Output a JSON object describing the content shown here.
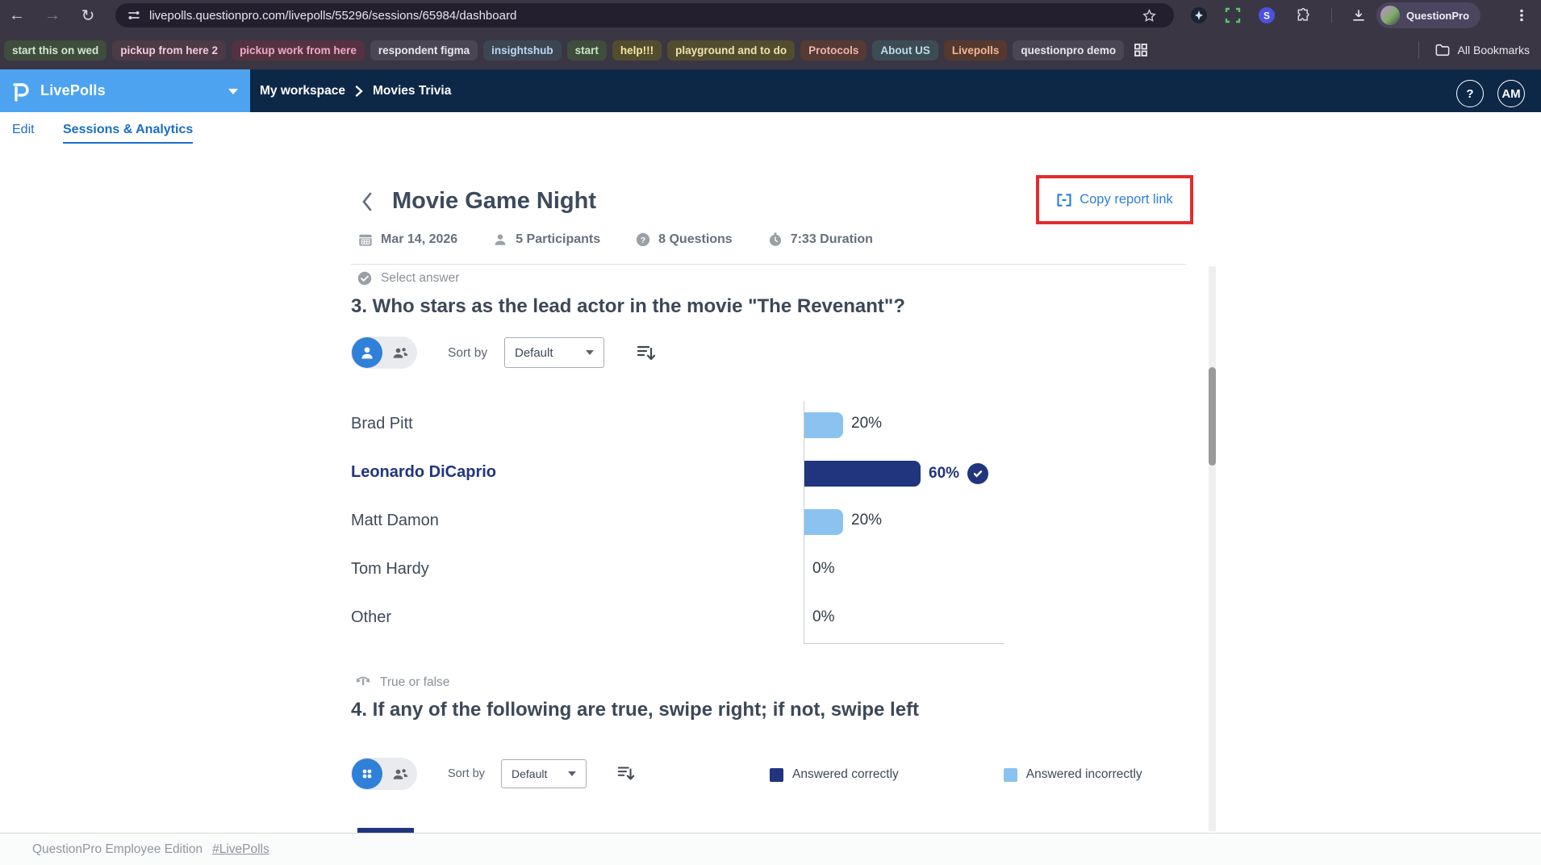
{
  "browser": {
    "toolbar": {
      "url": "livepolls.questionpro.com/livepolls/55296/sessions/65984/dashboard",
      "profile_label": "QuestionPro"
    },
    "bookmarks": [
      {
        "label": "start this on wed",
        "fg": "#d4e6cf",
        "bg": "#3f4d3c"
      },
      {
        "label": "pickup from here 2",
        "fg": "#f2cade",
        "bg": "#4c3a46"
      },
      {
        "label": "pickup work from here",
        "fg": "#f0a9c5",
        "bg": "#553241"
      },
      {
        "label": "respondent figma",
        "fg": "#e9e7ee",
        "bg": "#4a4653"
      },
      {
        "label": "insightshub",
        "fg": "#bcd6f2",
        "bg": "#3c4653"
      },
      {
        "label": "start",
        "fg": "#cbe5c3",
        "bg": "#3f4d3c"
      },
      {
        "label": "help!!!",
        "fg": "#f5e6a0",
        "bg": "#534d2f"
      },
      {
        "label": "playground and to do",
        "fg": "#f0e3a8",
        "bg": "#524c31"
      },
      {
        "label": "Protocols",
        "fg": "#f2b4ab",
        "bg": "#553a35"
      },
      {
        "label": "About US",
        "fg": "#bfdcea",
        "bg": "#3c4c54"
      },
      {
        "label": "Livepolls",
        "fg": "#f3b597",
        "bg": "#55392f"
      },
      {
        "label": "questionpro demo",
        "fg": "#e9e7ee",
        "bg": "#4a4653"
      }
    ],
    "all_bookmarks_label": "All Bookmarks"
  },
  "header": {
    "product": "LivePolls",
    "breadcrumb": {
      "workspace": "My workspace",
      "current": "Movies Trivia"
    },
    "help_label": "?",
    "avatar_initials": "AM"
  },
  "tabs": {
    "edit": "Edit",
    "sessions": "Sessions & Analytics"
  },
  "report": {
    "title": "Movie Game Night",
    "copy_button": "Copy report link",
    "meta": [
      {
        "icon": "calendar-icon",
        "label": "Mar 14, 2026"
      },
      {
        "icon": "person-icon",
        "label": "5 Participants"
      },
      {
        "icon": "question-icon",
        "label": "8 Questions"
      },
      {
        "icon": "timer-icon",
        "label": "7:33 Duration"
      }
    ]
  },
  "q3": {
    "type_label": "Select answer",
    "title": "3. Who stars as the lead actor in the movie \"The Revenant\"?",
    "sort_by": "Sort by",
    "sort_value": "Default",
    "chart_data": {
      "type": "bar",
      "orientation": "horizontal",
      "categories": [
        "Brad Pitt",
        "Leonardo DiCaprio",
        "Matt Damon",
        "Tom Hardy",
        "Other"
      ],
      "values": [
        20,
        60,
        20,
        0,
        0
      ],
      "unit": "%",
      "correct_answer": "Leonardo DiCaprio",
      "xlim": [
        0,
        100
      ],
      "colors": {
        "default": "#8ac3ef",
        "correct": "#20357e"
      }
    }
  },
  "q4": {
    "type_label": "True or false",
    "title": "4. If any of the following are true, swipe right; if not, swipe left",
    "sort_by": "Sort by",
    "sort_value": "Default",
    "legend": [
      {
        "label": "Answered correctly",
        "color": "#20357e"
      },
      {
        "label": "Answered incorrectly",
        "color": "#8ac3ef"
      }
    ]
  },
  "footer": {
    "text": "QuestionPro Employee Edition",
    "link": "#LivePolls"
  }
}
